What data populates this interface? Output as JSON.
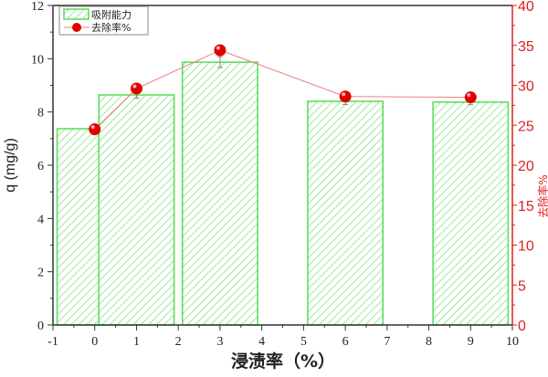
{
  "chart_data": {
    "type": "bar+scatter",
    "xlabel": "浸渍率（%）",
    "ylabel_left": "q (mg/g)",
    "ylabel_right": "去除率%",
    "xlim": [
      -1,
      10
    ],
    "ylim_left": [
      0,
      12
    ],
    "ylim_right": [
      0,
      40
    ],
    "x_ticks": [
      "-1",
      "0",
      "1",
      "2",
      "3",
      "4",
      "5",
      "6",
      "7",
      "8",
      "9",
      "10"
    ],
    "y_left_ticks": [
      "0",
      "2",
      "4",
      "6",
      "8",
      "10",
      "12"
    ],
    "y_right_ticks": [
      "0",
      "5",
      "10",
      "15",
      "20",
      "25",
      "30",
      "35",
      "40"
    ],
    "legend_position": "top-left",
    "grid": false,
    "series": [
      {
        "name": "吸附能力",
        "type": "bar",
        "axis": "left",
        "color": "#55dd55",
        "x": [
          0,
          1,
          3,
          6,
          9
        ],
        "values": [
          7.37,
          8.64,
          9.87,
          8.4,
          8.37
        ],
        "errors": [
          0.1,
          0.12,
          0.2,
          0.12,
          0.1
        ]
      },
      {
        "name": "去除率%",
        "type": "scatter-line",
        "axis": "right",
        "color": "#e00000",
        "x": [
          0,
          1,
          3,
          6,
          9
        ],
        "values": [
          24.5,
          29.6,
          34.4,
          28.6,
          28.5
        ]
      }
    ]
  }
}
